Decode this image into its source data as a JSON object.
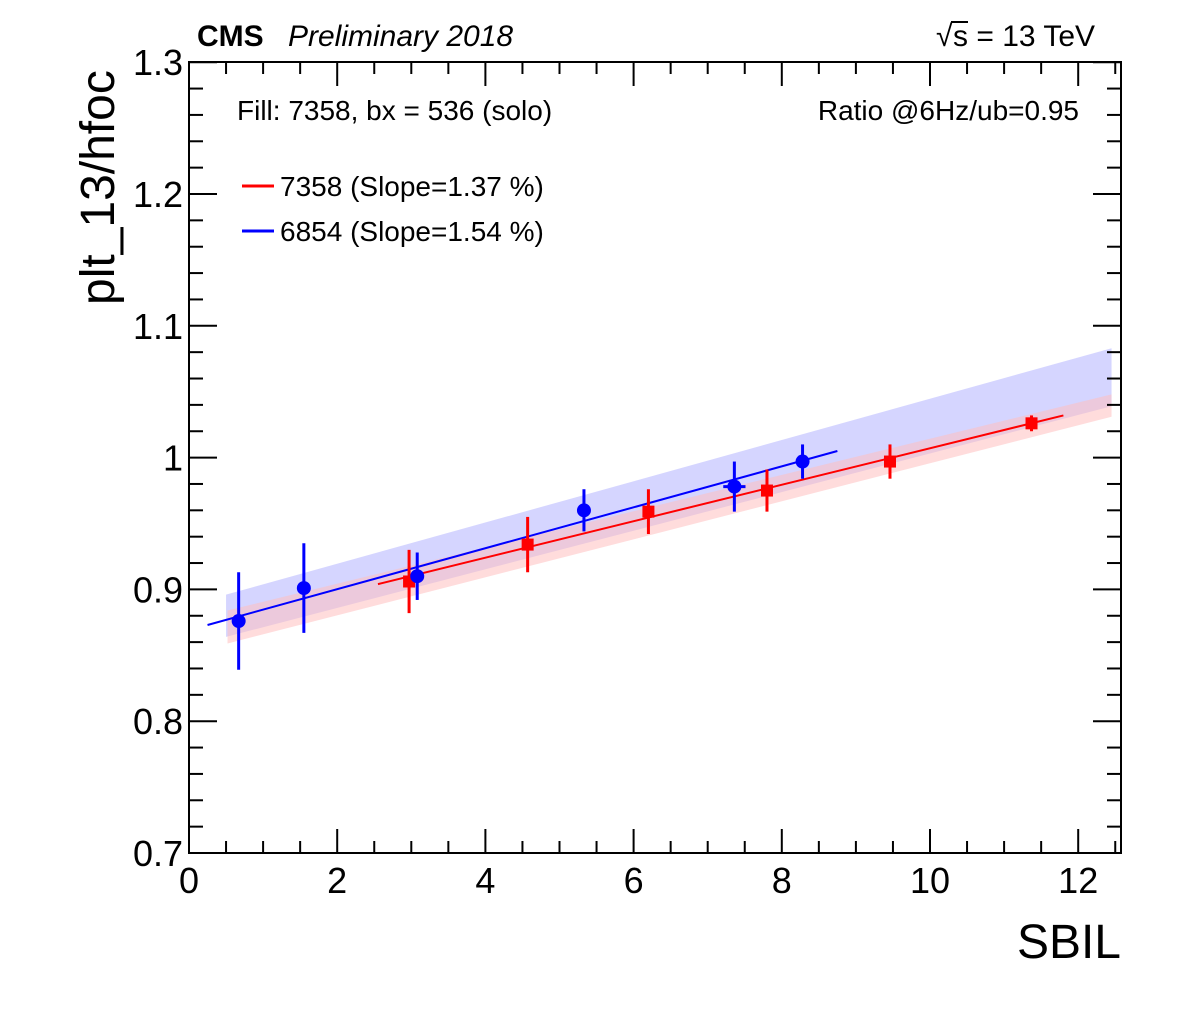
{
  "header": {
    "experiment": "CMS",
    "status": "Preliminary 2018",
    "energy_value": "s = 13 TeV",
    "sqrt_symbol": "√"
  },
  "info": {
    "fill_text": "Fill: 7358, bx = 536 (solo)",
    "ratio_text": "Ratio @6Hz/ub=0.95"
  },
  "chart_data": {
    "type": "scatter",
    "xlabel": "SBIL",
    "ylabel": "plt_13/hfoc",
    "xlim": [
      0,
      12.5
    ],
    "ylim": [
      0.7,
      1.3
    ],
    "x_ticks": [
      0,
      2,
      4,
      6,
      8,
      10,
      12
    ],
    "x_tick_labels": [
      "0",
      "2",
      "4",
      "6",
      "8",
      "10",
      "12"
    ],
    "y_ticks": [
      0.7,
      0.8,
      0.9,
      1.0,
      1.1,
      1.2,
      1.3
    ],
    "y_tick_labels": [
      "0.7",
      "0.8",
      "0.9",
      "1",
      "1.1",
      "1.2",
      "1.3"
    ],
    "legend_position": "top-left",
    "series": [
      {
        "name": "7358 (Slope=1.37 %)",
        "color": "#ff0000",
        "band_color": "#ffbfbf",
        "marker": "square",
        "points": [
          {
            "x": 2.97,
            "y": 0.906,
            "yerr": 0.024,
            "xerr": 0.06
          },
          {
            "x": 4.57,
            "y": 0.934,
            "yerr": 0.021,
            "xerr": 0.06
          },
          {
            "x": 6.2,
            "y": 0.959,
            "yerr": 0.017,
            "xerr": 0.06
          },
          {
            "x": 7.8,
            "y": 0.975,
            "yerr": 0.016,
            "xerr": 0.08
          },
          {
            "x": 9.46,
            "y": 0.997,
            "yerr": 0.013,
            "xerr": 0.08
          },
          {
            "x": 11.37,
            "y": 1.026,
            "yerr": 0.006,
            "xerr": 0.08
          }
        ],
        "fit": {
          "x1": 2.55,
          "y1": 0.904,
          "x2": 11.8,
          "y2": 1.032
        },
        "band": {
          "x1": 0.52,
          "x2": 12.45,
          "lo1": 0.859,
          "hi1": 0.884,
          "lo2": 1.031,
          "hi2": 1.048
        }
      },
      {
        "name": "6854 (Slope=1.54 %)",
        "color": "#0000ff",
        "band_color": "#b9b9ff",
        "marker": "circle",
        "points": [
          {
            "x": 0.67,
            "y": 0.876,
            "yerr": 0.037,
            "xerr": 0.0
          },
          {
            "x": 1.55,
            "y": 0.901,
            "yerr": 0.034,
            "xerr": 0.0
          },
          {
            "x": 3.08,
            "y": 0.91,
            "yerr": 0.018,
            "xerr": 0.0
          },
          {
            "x": 5.33,
            "y": 0.96,
            "yerr": 0.016,
            "xerr": 0.0
          },
          {
            "x": 7.36,
            "y": 0.978,
            "yerr": 0.019,
            "xerr": 0.15
          },
          {
            "x": 8.28,
            "y": 0.997,
            "yerr": 0.013,
            "xerr": 0.0
          }
        ],
        "fit": {
          "x1": 0.25,
          "y1": 0.873,
          "x2": 8.75,
          "y2": 1.005
        },
        "band": {
          "x1": 0.5,
          "x2": 12.45,
          "lo1": 0.864,
          "hi1": 0.896,
          "lo2": 1.039,
          "hi2": 1.083
        }
      }
    ]
  }
}
